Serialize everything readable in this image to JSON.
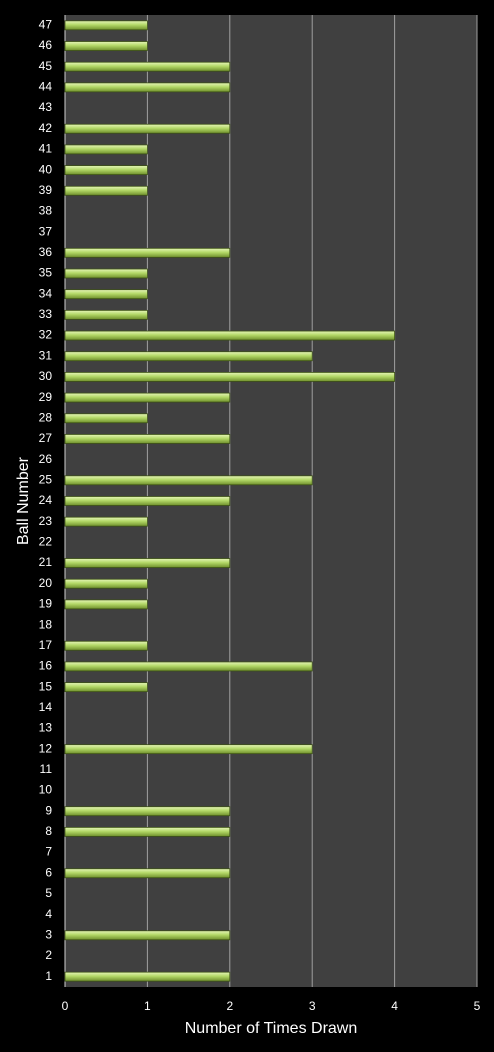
{
  "chart_data": {
    "type": "hbar",
    "x_label": "Number of Times Drawn",
    "y_label": "Ball Number",
    "categories": [
      "1",
      "2",
      "3",
      "4",
      "5",
      "6",
      "7",
      "8",
      "9",
      "10",
      "11",
      "12",
      "13",
      "14",
      "15",
      "16",
      "17",
      "18",
      "19",
      "20",
      "21",
      "22",
      "23",
      "24",
      "25",
      "26",
      "27",
      "28",
      "29",
      "30",
      "31",
      "32",
      "33",
      "34",
      "35",
      "36",
      "37",
      "38",
      "39",
      "40",
      "41",
      "42",
      "43",
      "44",
      "45",
      "46",
      "47"
    ],
    "values": [
      2,
      0,
      2,
      0,
      0,
      2,
      0,
      2,
      2,
      0,
      0,
      3,
      0,
      0,
      1,
      3,
      1,
      0,
      1,
      1,
      2,
      0,
      1,
      2,
      3,
      0,
      2,
      1,
      2,
      4,
      3,
      4,
      1,
      1,
      1,
      2,
      0,
      0,
      1,
      1,
      1,
      2,
      0,
      2,
      2,
      1,
      1
    ],
    "color": "#a6cc55",
    "xlim": [
      0,
      5
    ],
    "xticks": [
      0,
      1,
      2,
      3,
      4,
      5
    ],
    "grid": true
  }
}
